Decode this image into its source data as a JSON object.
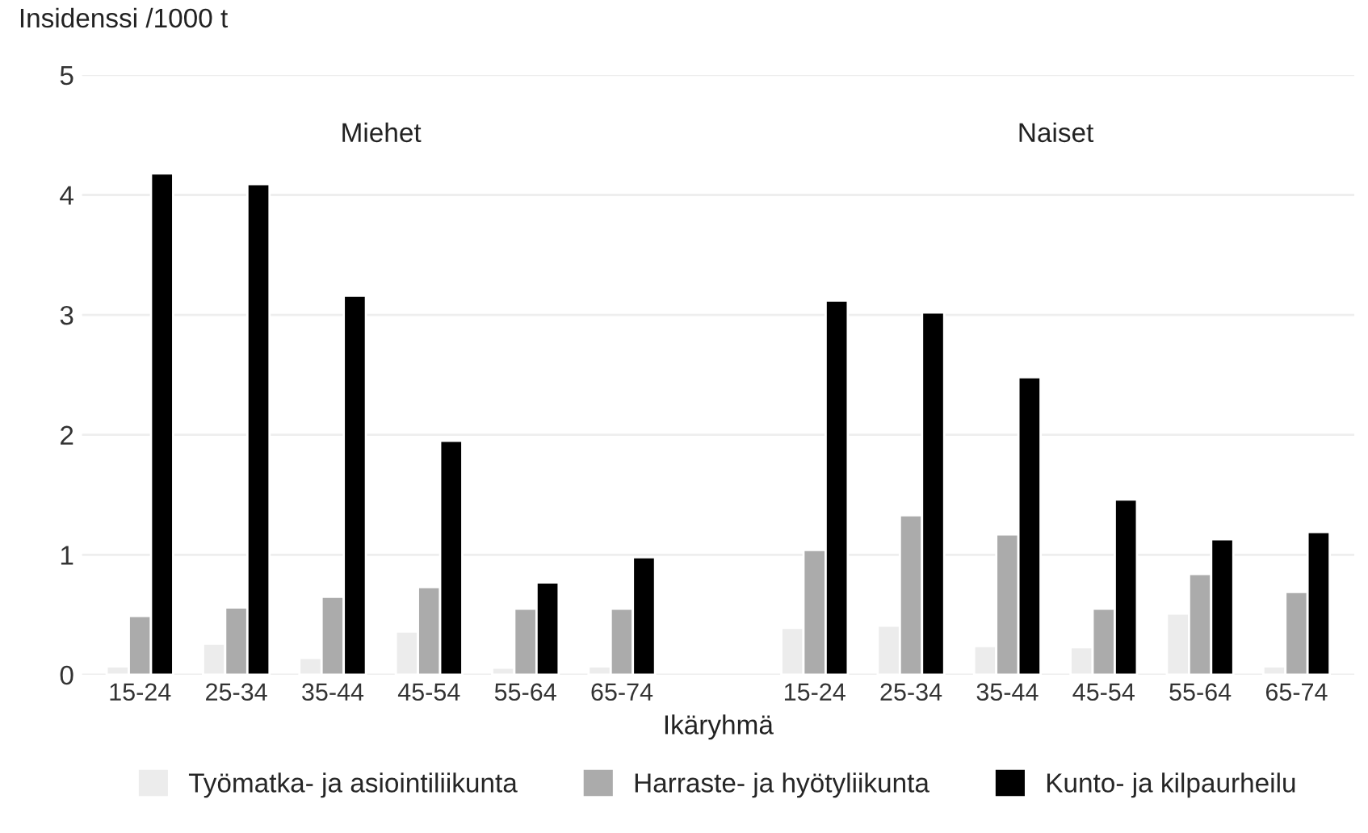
{
  "chart_data": {
    "type": "bar",
    "ylabel": "Insidenssi /1000 t",
    "xlabel": "Ikäryhmä",
    "annotations": [
      "Miehet",
      "Naiset"
    ],
    "categories": [
      "15-24",
      "25-34",
      "35-44",
      "45-54",
      "55-64",
      "65-74",
      null,
      "15-24",
      "25-34",
      "35-44",
      "45-54",
      "55-64",
      "65-74"
    ],
    "series": [
      {
        "name": "Työmatka- ja asiointiliikunta",
        "color": "#ececec",
        "values": [
          0.07,
          0.26,
          0.14,
          0.36,
          0.06,
          0.07,
          null,
          0.39,
          0.41,
          0.24,
          0.23,
          0.51,
          0.07
        ]
      },
      {
        "name": "Harraste- ja hyötyliikunta",
        "color": "#ababab",
        "values": [
          0.49,
          0.56,
          0.65,
          0.73,
          0.55,
          0.55,
          null,
          1.04,
          1.33,
          1.17,
          0.55,
          0.84,
          0.69
        ]
      },
      {
        "name": "Kunto- ja kilpaurheilu",
        "color": "#000000",
        "values": [
          4.18,
          4.09,
          3.16,
          1.95,
          0.77,
          0.98,
          null,
          3.12,
          3.02,
          2.48,
          1.46,
          1.13,
          1.19
        ]
      }
    ],
    "ylim": [
      0,
      5
    ],
    "yticks": [
      0,
      1,
      2,
      3,
      4,
      5
    ],
    "grid": "y",
    "legend": "bottom"
  }
}
